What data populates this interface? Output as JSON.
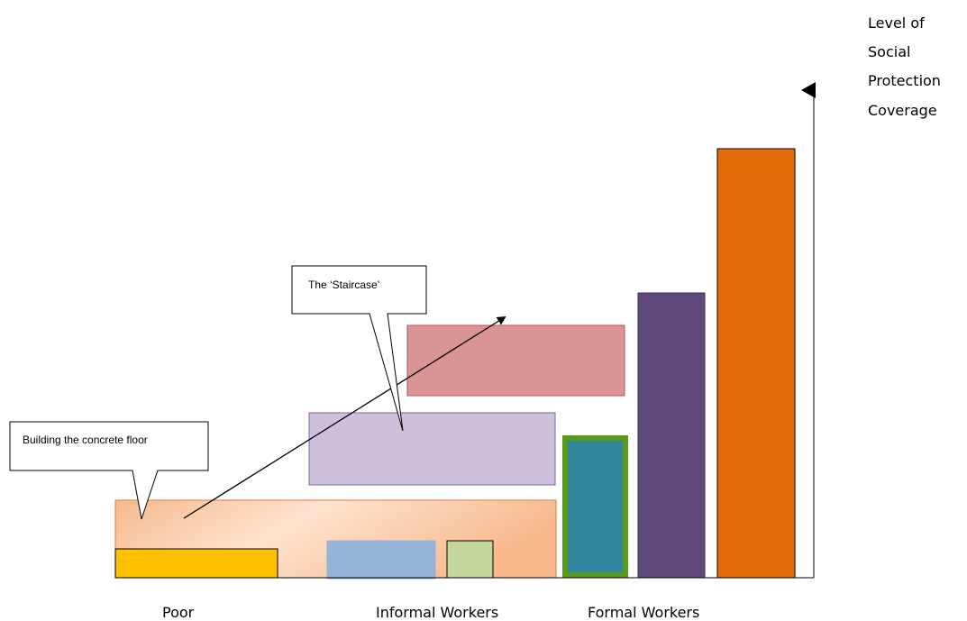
{
  "callouts": {
    "floor": "Building the concrete floor",
    "staircase": "The ‘Staircase’"
  },
  "axis_title_lines": [
    "Level of",
    "Social",
    "Protection",
    "Coverage"
  ],
  "groups": {
    "poor": "Poor",
    "informal": "Informal Workers",
    "formal": "Formal Workers"
  },
  "colors": {
    "floor_band": "#f8c9a6",
    "floor_band_edge": "#e07a3a",
    "poor_bar": "#ffc000",
    "informal_bar_blue": "#95b3d7",
    "informal_bar_green": "#c3d69b",
    "staircase_step_purple": "#ccc0da",
    "staircase_step_red": "#d99594",
    "formal_teal": "#31859c",
    "formal_teal_border": "#4f8a10",
    "formal_purple": "#5f497a",
    "formal_orange": "#e36c09"
  }
}
